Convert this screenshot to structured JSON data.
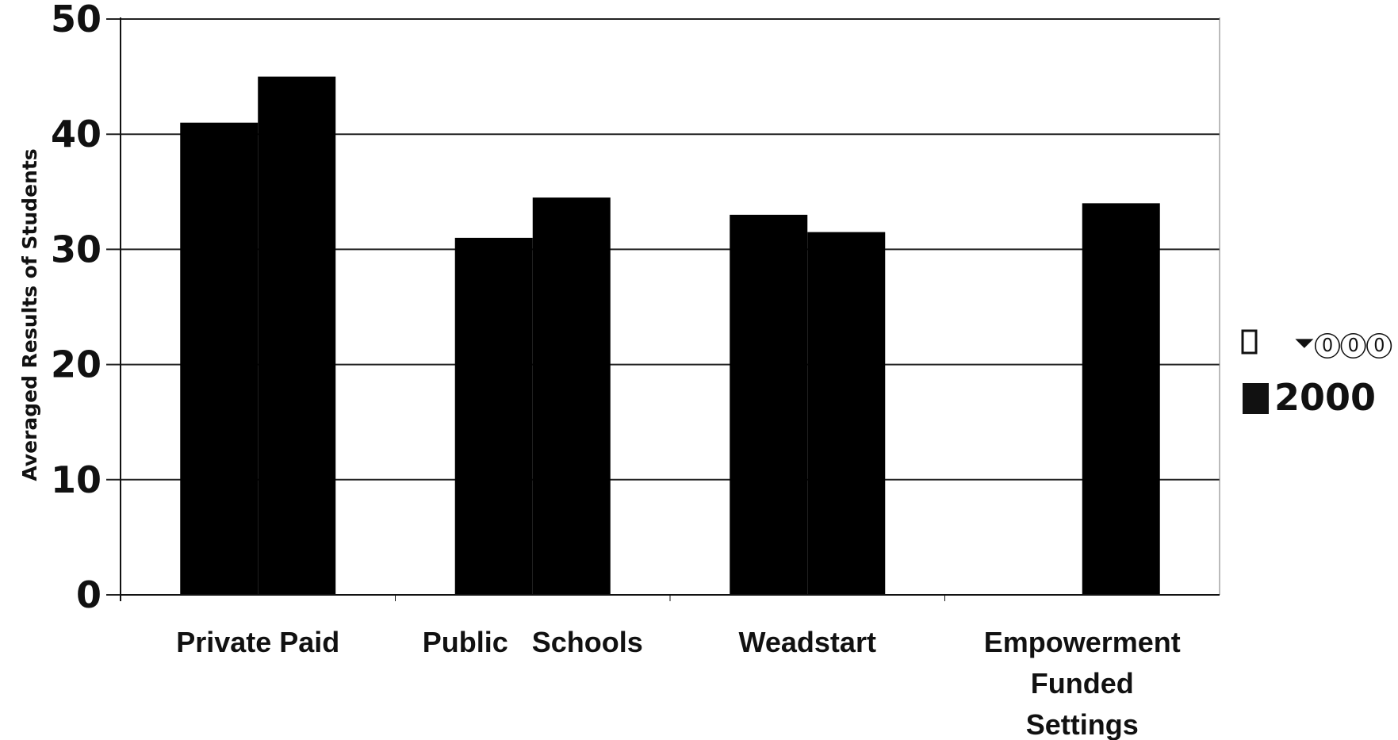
{
  "chart_data": {
    "type": "bar",
    "title": "",
    "xlabel": "",
    "ylabel": "Averaged Results of Students",
    "ylim": [
      0,
      50
    ],
    "yticks": [
      "0",
      "10",
      "20",
      "30",
      "40",
      "50"
    ],
    "grid": true,
    "legend_position": "right",
    "categories": [
      [
        "Private Paid"
      ],
      [
        "Public   Schools"
      ],
      [
        "Weadstart"
      ],
      [
        "Empowerment",
        "Funded",
        "Settings"
      ]
    ],
    "series": [
      {
        "name": "⏷⓪⓪⓪",
        "values": [
          41,
          31,
          33,
          0
        ],
        "color": "#000000"
      },
      {
        "name": "2000",
        "values": [
          45,
          34.5,
          31.5,
          34
        ],
        "color": "#000000"
      }
    ]
  }
}
